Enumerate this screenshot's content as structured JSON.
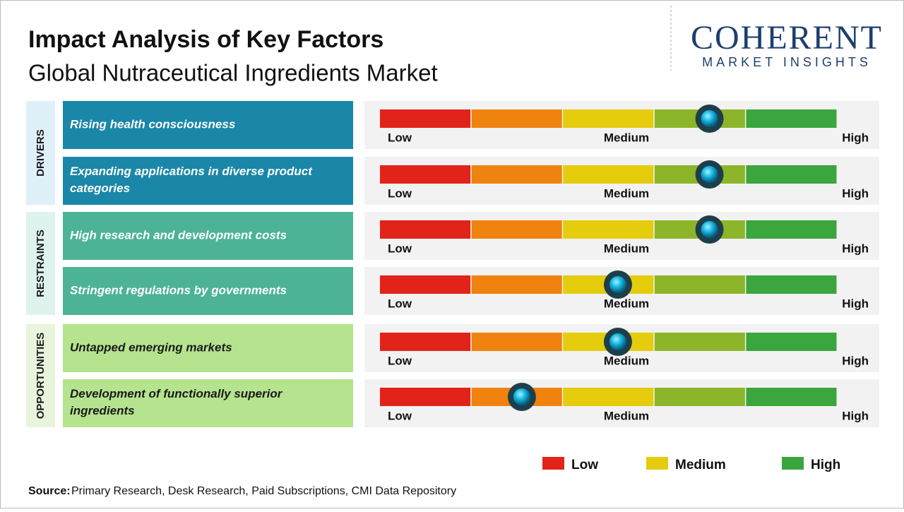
{
  "header": {
    "title": "Impact Analysis of Key Factors",
    "subtitle": "Global Nutraceutical Ingredients Market"
  },
  "logo": {
    "name": "COHERENT",
    "tagline": "MARKET INSIGHTS"
  },
  "scale_labels": [
    "Low",
    "Medium",
    "High"
  ],
  "segment_colors": [
    "#e2231a",
    "#f0820f",
    "#e5cc0c",
    "#8db52a",
    "#3aa63d"
  ],
  "groups": [
    {
      "label": "DRIVERS",
      "color": "#1a87a8",
      "bg": "#dff0f8",
      "factors": [
        {
          "text": "Rising health consciousness",
          "impact": 0.72
        },
        {
          "text": "Expanding applications in diverse product categories",
          "impact": 0.72
        }
      ]
    },
    {
      "label": "RESTRAINTS",
      "color": "#4db396",
      "bg": "#dff3ee",
      "factors": [
        {
          "text": "High research and development costs",
          "impact": 0.72
        },
        {
          "text": "Stringent regulations by governments",
          "impact": 0.52
        }
      ]
    },
    {
      "label": "OPPORTUNITIES",
      "color": "#b5e38e",
      "bg": "#e8f5dc",
      "factors": [
        {
          "text": "Untapped emerging markets",
          "impact": 0.52
        },
        {
          "text": "Development of functionally superior ingredients",
          "impact": 0.31
        }
      ]
    }
  ],
  "legend": [
    {
      "label": "Low",
      "color": "#e2231a"
    },
    {
      "label": "Medium",
      "color": "#e5cc0c"
    },
    {
      "label": "High",
      "color": "#3aa63d"
    }
  ],
  "source": {
    "label": "Source:",
    "text": "Primary Research, Desk Research, Paid Subscriptions, CMI Data Repository"
  }
}
